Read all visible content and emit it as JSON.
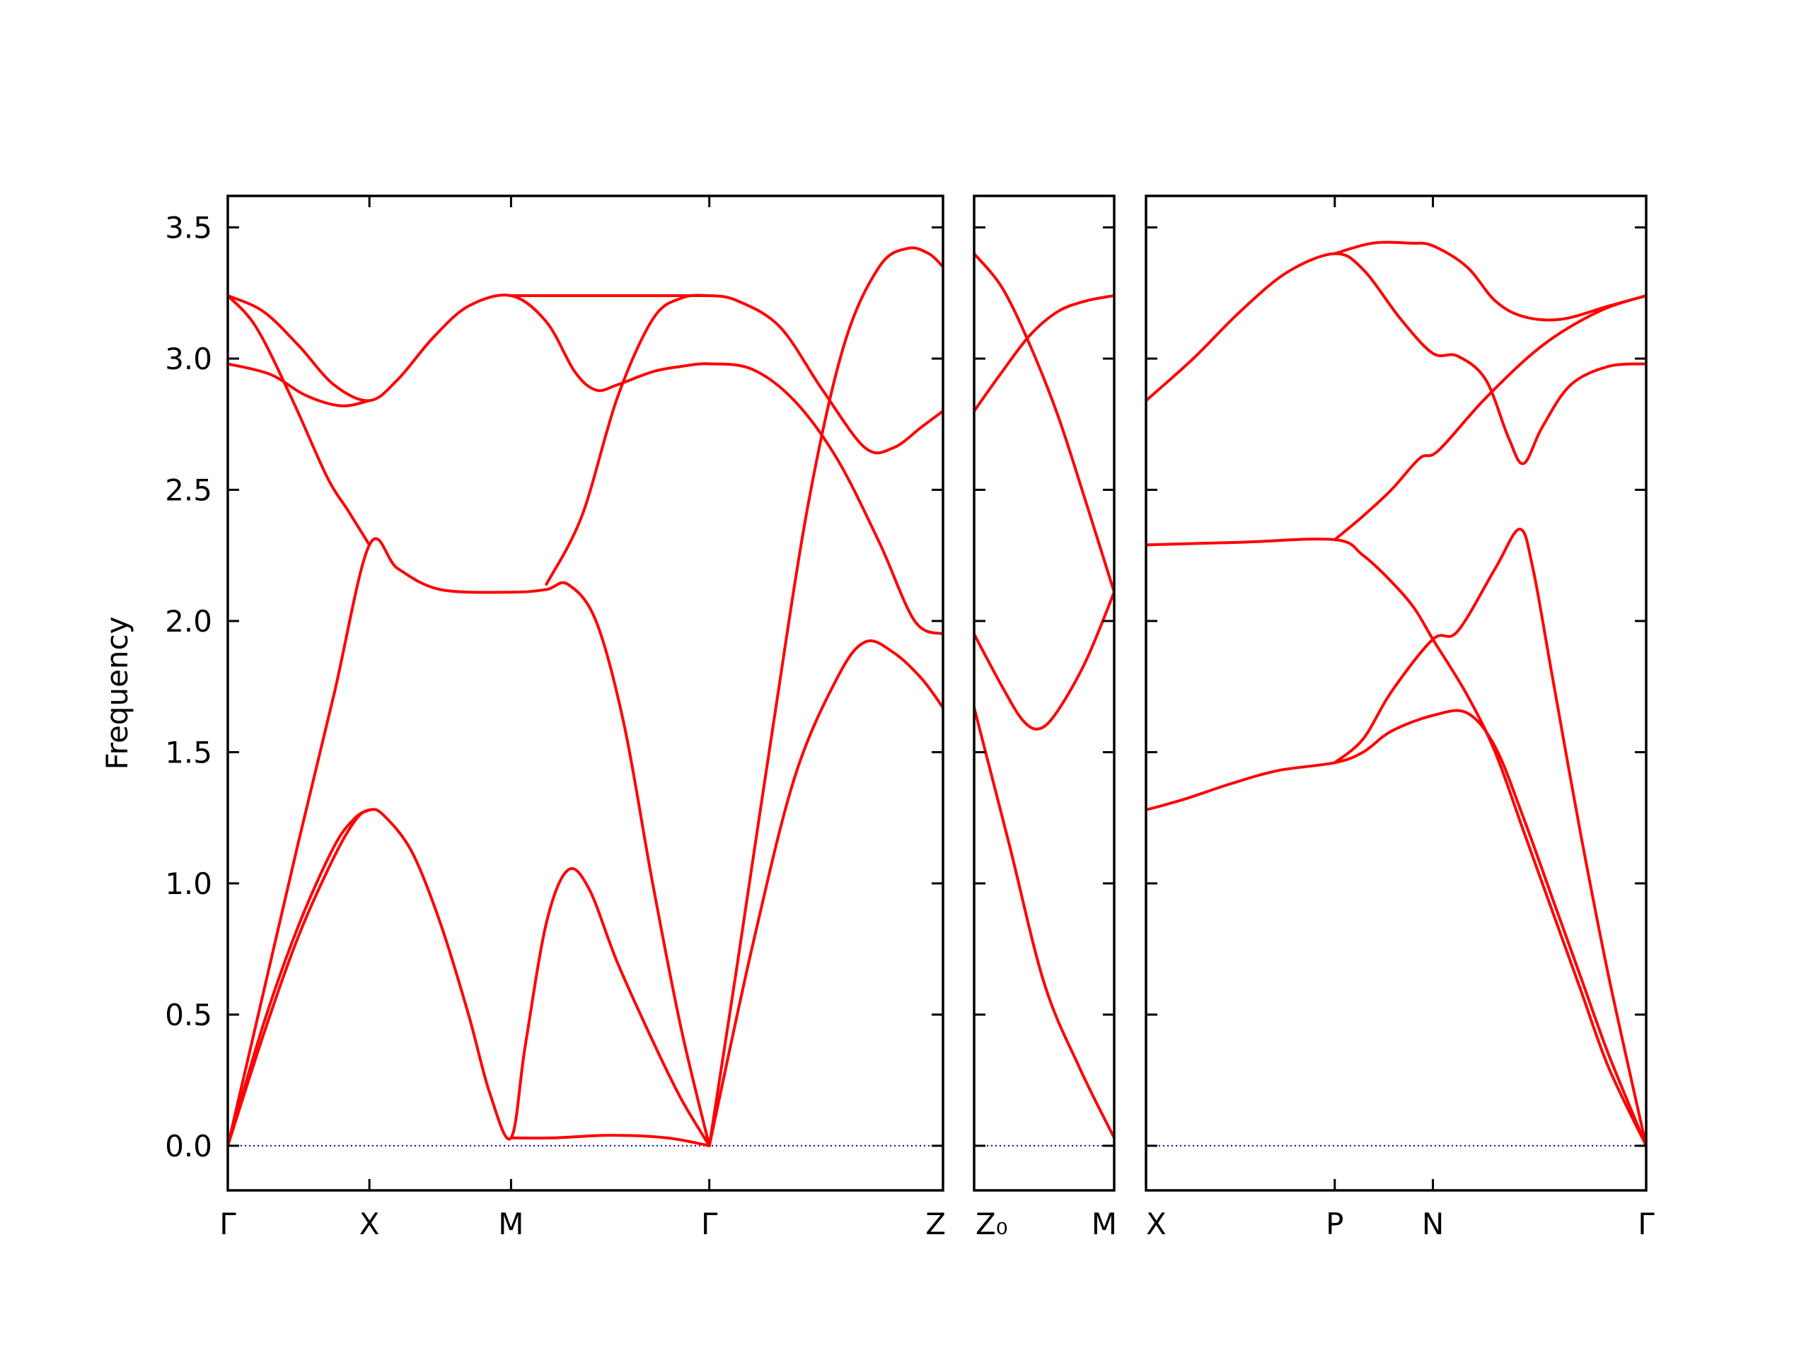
{
  "chart_data": {
    "type": "line",
    "ylabel": "Frequency",
    "ylim": [
      -0.17,
      3.62
    ],
    "yticks": [
      0.0,
      0.5,
      1.0,
      1.5,
      2.0,
      2.5,
      3.0,
      3.5
    ],
    "ytick_labels": [
      "0.0",
      "0.5",
      "1.0",
      "1.5",
      "2.0",
      "2.5",
      "3.0",
      "3.5"
    ],
    "line_color": "#ff0000",
    "zero_line_color": "#0000cc",
    "panels": [
      {
        "xlim": [
          0,
          5.05
        ],
        "ticks": [
          {
            "x": 0,
            "label": "Γ"
          },
          {
            "x": 1.0,
            "label": "X"
          },
          {
            "x": 2.0,
            "label": "M"
          },
          {
            "x": 3.4,
            "label": "Γ"
          },
          {
            "x": 5.05,
            "label": "Z"
          }
        ],
        "bands": [
          [
            [
              0,
              0
            ],
            [
              0.25,
              0.42
            ],
            [
              0.5,
              0.8
            ],
            [
              0.75,
              1.1
            ],
            [
              0.9,
              1.24
            ],
            [
              1.0,
              1.28
            ],
            [
              1.1,
              1.26
            ],
            [
              1.3,
              1.12
            ],
            [
              1.5,
              0.85
            ],
            [
              1.7,
              0.5
            ],
            [
              1.85,
              0.2
            ],
            [
              2.0,
              0.03
            ],
            [
              2.1,
              0.38
            ],
            [
              2.25,
              0.85
            ],
            [
              2.4,
              1.05
            ],
            [
              2.55,
              0.98
            ],
            [
              2.75,
              0.7
            ],
            [
              3.0,
              0.4
            ],
            [
              3.2,
              0.18
            ],
            [
              3.4,
              0
            ]
          ],
          [
            [
              0,
              0
            ],
            [
              0.25,
              0.46
            ],
            [
              0.5,
              0.84
            ],
            [
              0.75,
              1.14
            ],
            [
              0.9,
              1.25
            ],
            [
              1.0,
              1.28
            ]
          ],
          [
            [
              0,
              0
            ],
            [
              0.25,
              0.58
            ],
            [
              0.5,
              1.16
            ],
            [
              0.75,
              1.72
            ],
            [
              1.0,
              2.29
            ],
            [
              1.2,
              2.2
            ],
            [
              1.5,
              2.12
            ],
            [
              2.0,
              2.11
            ],
            [
              2.25,
              2.12
            ],
            [
              2.4,
              2.14
            ],
            [
              2.6,
              2.0
            ],
            [
              2.8,
              1.6
            ],
            [
              3.0,
              1.0
            ],
            [
              3.2,
              0.45
            ],
            [
              3.4,
              0
            ]
          ],
          [
            [
              2.0,
              0.03
            ],
            [
              2.3,
              0.03
            ],
            [
              2.7,
              0.04
            ],
            [
              3.1,
              0.03
            ],
            [
              3.4,
              0
            ]
          ],
          [
            [
              0,
              3.24
            ],
            [
              0.2,
              3.12
            ],
            [
              0.45,
              2.85
            ],
            [
              0.7,
              2.55
            ],
            [
              0.85,
              2.42
            ],
            [
              1.0,
              2.29
            ]
          ],
          [
            [
              0,
              3.24
            ],
            [
              0.25,
              3.18
            ],
            [
              0.5,
              3.05
            ],
            [
              0.75,
              2.9
            ],
            [
              1.0,
              2.84
            ],
            [
              1.2,
              2.92
            ],
            [
              1.45,
              3.08
            ],
            [
              1.7,
              3.2
            ],
            [
              2.0,
              3.24
            ],
            [
              2.25,
              3.14
            ],
            [
              2.45,
              2.95
            ],
            [
              2.6,
              2.88
            ],
            [
              2.75,
              2.9
            ],
            [
              3.0,
              2.95
            ],
            [
              3.2,
              2.97
            ],
            [
              3.4,
              2.98
            ],
            [
              3.7,
              2.96
            ],
            [
              4.0,
              2.84
            ],
            [
              4.3,
              2.62
            ],
            [
              4.6,
              2.3
            ],
            [
              4.85,
              2.0
            ],
            [
              5.05,
              1.95
            ]
          ],
          [
            [
              0,
              2.98
            ],
            [
              0.3,
              2.94
            ],
            [
              0.55,
              2.86
            ],
            [
              0.8,
              2.82
            ],
            [
              1.0,
              2.84
            ]
          ],
          [
            [
              2.0,
              3.24
            ],
            [
              3.4,
              3.24
            ]
          ],
          [
            [
              2.25,
              2.14
            ],
            [
              2.5,
              2.4
            ],
            [
              2.75,
              2.85
            ],
            [
              3.0,
              3.15
            ],
            [
              3.2,
              3.23
            ],
            [
              3.4,
              3.24
            ],
            [
              3.6,
              3.22
            ],
            [
              3.9,
              3.12
            ],
            [
              4.2,
              2.88
            ],
            [
              4.5,
              2.66
            ],
            [
              4.7,
              2.66
            ],
            [
              4.9,
              2.74
            ],
            [
              5.05,
              2.8
            ]
          ],
          [
            [
              3.4,
              0
            ],
            [
              3.7,
              0.75
            ],
            [
              4.0,
              1.4
            ],
            [
              4.3,
              1.78
            ],
            [
              4.5,
              1.92
            ],
            [
              4.7,
              1.88
            ],
            [
              4.9,
              1.78
            ],
            [
              5.05,
              1.67
            ]
          ],
          [
            [
              3.4,
              0
            ],
            [
              3.6,
              0.7
            ],
            [
              3.85,
              1.6
            ],
            [
              4.1,
              2.45
            ],
            [
              4.35,
              3.05
            ],
            [
              4.6,
              3.35
            ],
            [
              4.8,
              3.42
            ],
            [
              4.95,
              3.4
            ],
            [
              5.05,
              3.35
            ]
          ]
        ]
      },
      {
        "xlim": [
          0,
          1.0
        ],
        "ticks": [
          {
            "x": 0,
            "label": "Z₀"
          },
          {
            "x": 1.0,
            "label": "M"
          }
        ],
        "bands": [
          [
            [
              0,
              1.67
            ],
            [
              0.25,
              1.15
            ],
            [
              0.5,
              0.62
            ],
            [
              0.75,
              0.3
            ],
            [
              1.0,
              0.03
            ]
          ],
          [
            [
              0,
              1.95
            ],
            [
              0.2,
              1.75
            ],
            [
              0.35,
              1.62
            ],
            [
              0.47,
              1.59
            ],
            [
              0.6,
              1.66
            ],
            [
              0.8,
              1.85
            ],
            [
              1.0,
              2.11
            ]
          ],
          [
            [
              0,
              2.8
            ],
            [
              0.2,
              2.95
            ],
            [
              0.4,
              3.09
            ],
            [
              0.6,
              3.18
            ],
            [
              0.8,
              3.22
            ],
            [
              1.0,
              3.24
            ]
          ],
          [
            [
              0,
              3.4
            ],
            [
              0.2,
              3.27
            ],
            [
              0.4,
              3.05
            ],
            [
              0.6,
              2.78
            ],
            [
              0.8,
              2.45
            ],
            [
              1.0,
              2.11
            ]
          ]
        ]
      },
      {
        "xlim": [
          0,
          2.65
        ],
        "ticks": [
          {
            "x": 0,
            "label": "X"
          },
          {
            "x": 1.0,
            "label": "P"
          },
          {
            "x": 1.52,
            "label": "N"
          },
          {
            "x": 2.65,
            "label": "Γ"
          }
        ],
        "bands": [
          [
            [
              0,
              1.28
            ],
            [
              0.2,
              1.32
            ],
            [
              0.45,
              1.38
            ],
            [
              0.7,
              1.43
            ],
            [
              1.0,
              1.46
            ],
            [
              1.15,
              1.5
            ],
            [
              1.3,
              1.58
            ],
            [
              1.52,
              1.64
            ],
            [
              1.7,
              1.65
            ],
            [
              1.85,
              1.52
            ],
            [
              2.0,
              1.25
            ],
            [
              2.15,
              0.95
            ],
            [
              2.3,
              0.65
            ],
            [
              2.45,
              0.35
            ],
            [
              2.65,
              0
            ]
          ],
          [
            [
              1.0,
              1.46
            ],
            [
              1.15,
              1.55
            ],
            [
              1.3,
              1.73
            ],
            [
              1.52,
              1.93
            ],
            [
              1.65,
              1.96
            ],
            [
              1.85,
              2.2
            ],
            [
              1.98,
              2.35
            ],
            [
              2.05,
              2.2
            ],
            [
              2.15,
              1.8
            ],
            [
              2.3,
              1.2
            ],
            [
              2.45,
              0.65
            ],
            [
              2.65,
              0
            ]
          ],
          [
            [
              0,
              2.29
            ],
            [
              0.5,
              2.3
            ],
            [
              1.0,
              2.31
            ],
            [
              1.15,
              2.25
            ],
            [
              1.3,
              2.15
            ],
            [
              1.42,
              2.05
            ],
            [
              1.52,
              1.93
            ],
            [
              1.7,
              1.72
            ],
            [
              1.85,
              1.5
            ],
            [
              2.0,
              1.2
            ],
            [
              2.15,
              0.9
            ],
            [
              2.3,
              0.6
            ],
            [
              2.45,
              0.3
            ],
            [
              2.65,
              0
            ]
          ],
          [
            [
              1.0,
              2.31
            ],
            [
              1.15,
              2.4
            ],
            [
              1.3,
              2.5
            ],
            [
              1.45,
              2.62
            ],
            [
              1.55,
              2.65
            ],
            [
              1.8,
              2.85
            ],
            [
              2.1,
              3.05
            ],
            [
              2.4,
              3.18
            ],
            [
              2.65,
              3.24
            ]
          ],
          [
            [
              0,
              2.84
            ],
            [
              0.25,
              3.0
            ],
            [
              0.5,
              3.18
            ],
            [
              0.75,
              3.33
            ],
            [
              1.0,
              3.4
            ],
            [
              1.15,
              3.34
            ],
            [
              1.35,
              3.15
            ],
            [
              1.52,
              3.02
            ],
            [
              1.65,
              3.01
            ],
            [
              1.8,
              2.92
            ],
            [
              1.92,
              2.7
            ],
            [
              2.0,
              2.6
            ],
            [
              2.1,
              2.74
            ],
            [
              2.25,
              2.9
            ],
            [
              2.45,
              2.97
            ],
            [
              2.65,
              2.98
            ]
          ],
          [
            [
              1.0,
              3.4
            ],
            [
              1.2,
              3.44
            ],
            [
              1.4,
              3.44
            ],
            [
              1.52,
              3.43
            ],
            [
              1.7,
              3.35
            ],
            [
              1.85,
              3.22
            ],
            [
              2.0,
              3.16
            ],
            [
              2.2,
              3.15
            ],
            [
              2.45,
              3.2
            ],
            [
              2.65,
              3.24
            ]
          ]
        ]
      }
    ]
  }
}
